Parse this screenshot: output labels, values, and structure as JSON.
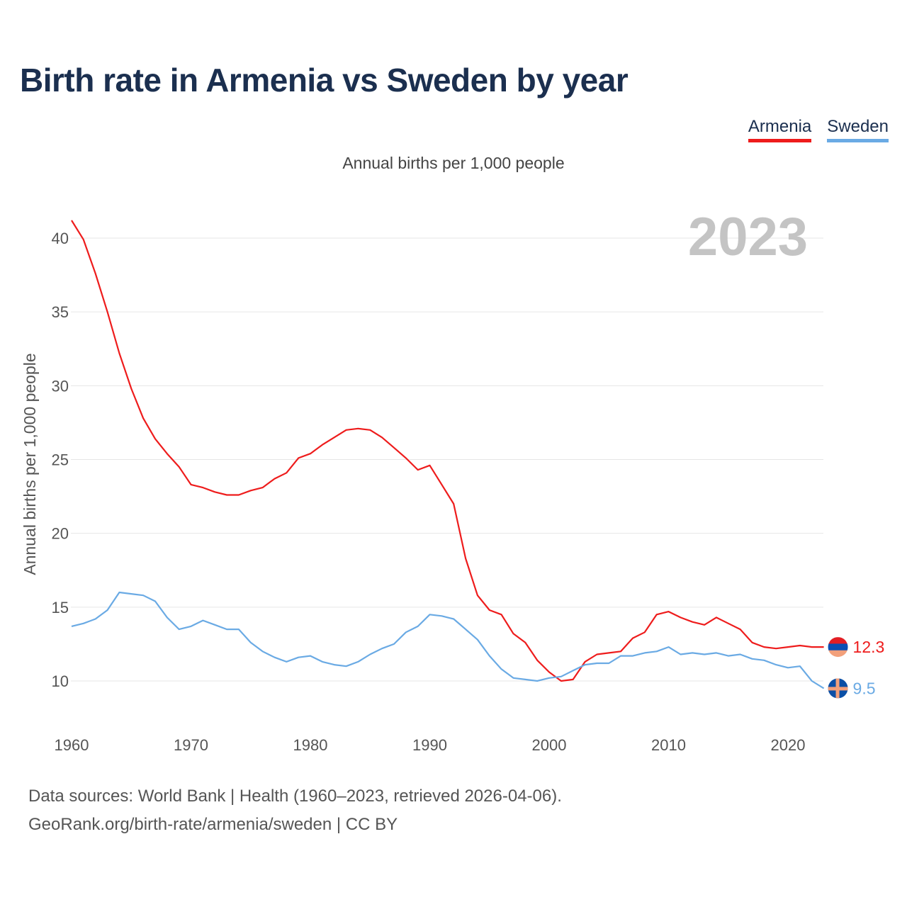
{
  "title": "Birth rate in Armenia vs Sweden by year",
  "subtitle": "Annual births per 1,000 people",
  "year_watermark": "2023",
  "legend": [
    {
      "label": "Armenia",
      "color": "#ee1c1c"
    },
    {
      "label": "Sweden",
      "color": "#6aaae4"
    }
  ],
  "footer": {
    "line1": "Data sources: World Bank | Health (1960–2023, retrieved 2026-04-06).",
    "line2": "GeoRank.org/birth-rate/armenia/sweden | CC BY"
  },
  "chart_data": {
    "type": "line",
    "title": "Birth rate in Armenia vs Sweden by year",
    "xlabel": "",
    "ylabel": "Annual births per 1,000 people",
    "xlim": [
      1960,
      2023
    ],
    "ylim": [
      8,
      42
    ],
    "grid": true,
    "legend_position": "top-right",
    "x_ticks": [
      1960,
      1970,
      1980,
      1990,
      2000,
      2010,
      2020
    ],
    "y_ticks": [
      10,
      15,
      20,
      25,
      30,
      35,
      40
    ],
    "x": [
      1960,
      1961,
      1962,
      1963,
      1964,
      1965,
      1966,
      1967,
      1968,
      1969,
      1970,
      1971,
      1972,
      1973,
      1974,
      1975,
      1976,
      1977,
      1978,
      1979,
      1980,
      1981,
      1982,
      1983,
      1984,
      1985,
      1986,
      1987,
      1988,
      1989,
      1990,
      1991,
      1992,
      1993,
      1994,
      1995,
      1996,
      1997,
      1998,
      1999,
      2000,
      2001,
      2002,
      2003,
      2004,
      2005,
      2006,
      2007,
      2008,
      2009,
      2010,
      2011,
      2012,
      2013,
      2014,
      2015,
      2016,
      2017,
      2018,
      2019,
      2020,
      2021,
      2022,
      2023
    ],
    "series": [
      {
        "name": "Armenia",
        "color": "#ee1c1c",
        "end_label": "12.3",
        "values": [
          41.2,
          39.9,
          37.6,
          35.0,
          32.2,
          29.8,
          27.8,
          26.4,
          25.4,
          24.5,
          23.3,
          23.1,
          22.8,
          22.6,
          22.6,
          22.9,
          23.1,
          23.7,
          24.1,
          25.1,
          25.4,
          26.0,
          26.5,
          27.0,
          27.1,
          27.0,
          26.5,
          25.8,
          25.1,
          24.3,
          24.6,
          23.3,
          22.0,
          18.3,
          15.8,
          14.8,
          14.5,
          13.2,
          12.6,
          11.4,
          10.6,
          10.0,
          10.1,
          11.3,
          11.8,
          11.9,
          12.0,
          12.9,
          13.3,
          14.5,
          14.7,
          14.3,
          14.0,
          13.8,
          14.3,
          13.9,
          13.5,
          12.6,
          12.3,
          12.2,
          12.3,
          12.4,
          12.3,
          12.3
        ]
      },
      {
        "name": "Sweden",
        "color": "#6aaae4",
        "end_label": "9.5",
        "values": [
          13.7,
          13.9,
          14.2,
          14.8,
          16.0,
          15.9,
          15.8,
          15.4,
          14.3,
          13.5,
          13.7,
          14.1,
          13.8,
          13.5,
          13.5,
          12.6,
          12.0,
          11.6,
          11.3,
          11.6,
          11.7,
          11.3,
          11.1,
          11.0,
          11.3,
          11.8,
          12.2,
          12.5,
          13.3,
          13.7,
          14.5,
          14.4,
          14.2,
          13.5,
          12.8,
          11.7,
          10.8,
          10.2,
          10.1,
          10.0,
          10.2,
          10.3,
          10.7,
          11.1,
          11.2,
          11.2,
          11.7,
          11.7,
          11.9,
          12.0,
          12.3,
          11.8,
          11.9,
          11.8,
          11.9,
          11.7,
          11.8,
          11.5,
          11.4,
          11.1,
          10.9,
          11.0,
          10.0,
          9.5
        ]
      }
    ]
  }
}
